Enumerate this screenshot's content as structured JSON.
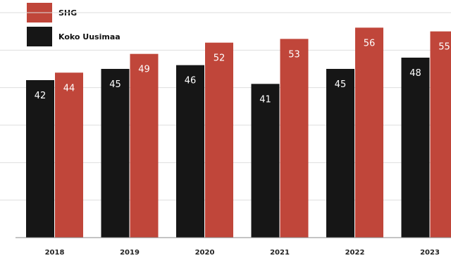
{
  "chart_data": {
    "type": "bar",
    "title": "",
    "xlabel": "",
    "ylabel": "",
    "categories": [
      "2018",
      "2019",
      "2020",
      "2021",
      "2022",
      "2023"
    ],
    "series": [
      {
        "name": "Koko Uusimaa",
        "color": "#161616",
        "values": [
          42,
          45,
          46,
          41,
          45,
          48
        ]
      },
      {
        "name": "SHG",
        "color": "#c0463a",
        "values": [
          44,
          49,
          52,
          53,
          56,
          55
        ]
      }
    ],
    "ylim": [
      0,
      60
    ],
    "grid": true,
    "legend_position": "top-left",
    "data_labels": true
  }
}
